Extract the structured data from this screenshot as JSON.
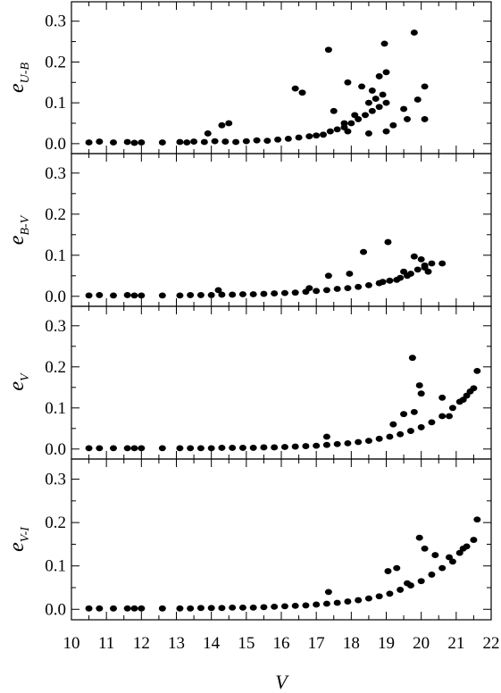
{
  "chart_data": [
    {
      "type": "scatter",
      "ylabel": {
        "main": "e",
        "sub": "U-B"
      },
      "xlabel": "",
      "xlim": [
        10,
        22
      ],
      "ylim": [
        -0.02,
        0.33
      ],
      "yticks": [
        "0.0",
        "0.1",
        "0.2",
        "0.3"
      ],
      "xticks": [],
      "points": [
        [
          10.5,
          0.003
        ],
        [
          10.8,
          0.005
        ],
        [
          11.2,
          0.003
        ],
        [
          11.6,
          0.004
        ],
        [
          11.8,
          0.002
        ],
        [
          12.0,
          0.003
        ],
        [
          12.6,
          0.003
        ],
        [
          13.1,
          0.004
        ],
        [
          13.3,
          0.003
        ],
        [
          13.5,
          0.005
        ],
        [
          13.8,
          0.004
        ],
        [
          14.1,
          0.006
        ],
        [
          14.4,
          0.005
        ],
        [
          14.7,
          0.004
        ],
        [
          15.0,
          0.006
        ],
        [
          15.3,
          0.008
        ],
        [
          15.6,
          0.007
        ],
        [
          15.9,
          0.01
        ],
        [
          16.2,
          0.012
        ],
        [
          16.5,
          0.015
        ],
        [
          16.8,
          0.018
        ],
        [
          17.0,
          0.02
        ],
        [
          17.2,
          0.022
        ],
        [
          17.4,
          0.03
        ],
        [
          17.6,
          0.035
        ],
        [
          17.8,
          0.04
        ],
        [
          18.0,
          0.05
        ],
        [
          18.2,
          0.06
        ],
        [
          18.4,
          0.07
        ],
        [
          18.6,
          0.08
        ],
        [
          18.8,
          0.09
        ],
        [
          19.0,
          0.1
        ],
        [
          17.35,
          0.23
        ],
        [
          16.4,
          0.135
        ],
        [
          16.6,
          0.125
        ],
        [
          17.9,
          0.15
        ],
        [
          18.3,
          0.14
        ],
        [
          18.6,
          0.13
        ],
        [
          18.8,
          0.165
        ],
        [
          19.0,
          0.175
        ],
        [
          18.95,
          0.245
        ],
        [
          19.8,
          0.272
        ],
        [
          20.1,
          0.14
        ],
        [
          19.9,
          0.108
        ],
        [
          20.1,
          0.06
        ],
        [
          17.5,
          0.08
        ],
        [
          17.8,
          0.05
        ],
        [
          18.1,
          0.07
        ],
        [
          18.5,
          0.1
        ],
        [
          19.2,
          0.045
        ],
        [
          19.6,
          0.06
        ],
        [
          19.5,
          0.085
        ],
        [
          14.3,
          0.045
        ],
        [
          14.5,
          0.05
        ],
        [
          13.9,
          0.025
        ],
        [
          18.9,
          0.12
        ],
        [
          18.7,
          0.11
        ],
        [
          17.9,
          0.03
        ],
        [
          18.5,
          0.025
        ],
        [
          19.0,
          0.03
        ]
      ]
    },
    {
      "type": "scatter",
      "ylabel": {
        "main": "e",
        "sub": "B-V"
      },
      "xlabel": "",
      "xlim": [
        10,
        22
      ],
      "ylim": [
        -0.02,
        0.33
      ],
      "yticks": [
        "0.0",
        "0.1",
        "0.2",
        "0.3"
      ],
      "xticks": [],
      "points": [
        [
          10.5,
          0.002
        ],
        [
          10.8,
          0.003
        ],
        [
          11.2,
          0.002
        ],
        [
          11.6,
          0.003
        ],
        [
          11.8,
          0.002
        ],
        [
          12.0,
          0.002
        ],
        [
          12.6,
          0.002
        ],
        [
          13.1,
          0.002
        ],
        [
          13.4,
          0.003
        ],
        [
          13.7,
          0.003
        ],
        [
          14.0,
          0.003
        ],
        [
          14.3,
          0.004
        ],
        [
          14.6,
          0.004
        ],
        [
          14.9,
          0.005
        ],
        [
          15.2,
          0.005
        ],
        [
          15.5,
          0.006
        ],
        [
          15.8,
          0.007
        ],
        [
          16.1,
          0.008
        ],
        [
          16.4,
          0.009
        ],
        [
          16.7,
          0.011
        ],
        [
          17.0,
          0.013
        ],
        [
          17.3,
          0.015
        ],
        [
          17.6,
          0.018
        ],
        [
          17.9,
          0.02
        ],
        [
          18.2,
          0.023
        ],
        [
          18.5,
          0.027
        ],
        [
          18.8,
          0.032
        ],
        [
          19.1,
          0.038
        ],
        [
          19.4,
          0.045
        ],
        [
          19.7,
          0.055
        ],
        [
          19.9,
          0.065
        ],
        [
          20.1,
          0.075
        ],
        [
          20.3,
          0.08
        ],
        [
          20.6,
          0.08
        ],
        [
          18.35,
          0.108
        ],
        [
          19.05,
          0.132
        ],
        [
          17.35,
          0.05
        ],
        [
          17.95,
          0.055
        ],
        [
          19.8,
          0.097
        ],
        [
          20.0,
          0.09
        ],
        [
          20.1,
          0.07
        ],
        [
          19.6,
          0.05
        ],
        [
          19.3,
          0.04
        ],
        [
          14.2,
          0.015
        ],
        [
          16.8,
          0.02
        ],
        [
          20.2,
          0.06
        ],
        [
          19.5,
          0.06
        ],
        [
          18.9,
          0.035
        ]
      ]
    },
    {
      "type": "scatter",
      "ylabel": {
        "main": "e",
        "sub": "V"
      },
      "xlabel": "",
      "xlim": [
        10,
        22
      ],
      "ylim": [
        -0.02,
        0.33
      ],
      "yticks": [
        "0.0",
        "0.1",
        "0.2",
        "0.3"
      ],
      "xticks": [],
      "points": [
        [
          10.5,
          0.002
        ],
        [
          10.8,
          0.002
        ],
        [
          11.2,
          0.002
        ],
        [
          11.6,
          0.002
        ],
        [
          11.8,
          0.002
        ],
        [
          12.0,
          0.002
        ],
        [
          12.6,
          0.002
        ],
        [
          13.1,
          0.002
        ],
        [
          13.4,
          0.002
        ],
        [
          13.7,
          0.002
        ],
        [
          14.0,
          0.002
        ],
        [
          14.3,
          0.003
        ],
        [
          14.6,
          0.003
        ],
        [
          14.9,
          0.003
        ],
        [
          15.2,
          0.003
        ],
        [
          15.5,
          0.004
        ],
        [
          15.8,
          0.004
        ],
        [
          16.1,
          0.005
        ],
        [
          16.4,
          0.006
        ],
        [
          16.7,
          0.007
        ],
        [
          17.0,
          0.008
        ],
        [
          17.3,
          0.01
        ],
        [
          17.6,
          0.012
        ],
        [
          17.9,
          0.014
        ],
        [
          18.2,
          0.017
        ],
        [
          18.5,
          0.02
        ],
        [
          18.8,
          0.025
        ],
        [
          19.1,
          0.03
        ],
        [
          19.4,
          0.036
        ],
        [
          19.7,
          0.044
        ],
        [
          20.0,
          0.053
        ],
        [
          20.3,
          0.065
        ],
        [
          20.6,
          0.08
        ],
        [
          20.9,
          0.1
        ],
        [
          21.1,
          0.115
        ],
        [
          21.3,
          0.13
        ],
        [
          21.4,
          0.14
        ],
        [
          21.6,
          0.19
        ],
        [
          19.75,
          0.222
        ],
        [
          19.95,
          0.155
        ],
        [
          20.0,
          0.135
        ],
        [
          19.5,
          0.085
        ],
        [
          19.8,
          0.09
        ],
        [
          20.6,
          0.125
        ],
        [
          19.2,
          0.06
        ],
        [
          17.3,
          0.03
        ],
        [
          20.8,
          0.08
        ],
        [
          21.2,
          0.12
        ],
        [
          21.5,
          0.148
        ]
      ]
    },
    {
      "type": "scatter",
      "ylabel": {
        "main": "e",
        "sub": "V-I"
      },
      "xlabel": "V",
      "xlim": [
        10,
        22
      ],
      "ylim": [
        -0.02,
        0.33
      ],
      "yticks": [
        "0.0",
        "0.1",
        "0.2",
        "0.3"
      ],
      "xticks": [
        "10",
        "11",
        "12",
        "13",
        "14",
        "15",
        "16",
        "17",
        "18",
        "19",
        "20",
        "21",
        "22"
      ],
      "points": [
        [
          10.5,
          0.002
        ],
        [
          10.8,
          0.002
        ],
        [
          11.2,
          0.002
        ],
        [
          11.6,
          0.002
        ],
        [
          11.8,
          0.002
        ],
        [
          12.0,
          0.002
        ],
        [
          12.6,
          0.002
        ],
        [
          13.1,
          0.002
        ],
        [
          13.4,
          0.002
        ],
        [
          13.7,
          0.003
        ],
        [
          14.0,
          0.003
        ],
        [
          14.3,
          0.003
        ],
        [
          14.6,
          0.004
        ],
        [
          14.9,
          0.004
        ],
        [
          15.2,
          0.004
        ],
        [
          15.5,
          0.005
        ],
        [
          15.8,
          0.006
        ],
        [
          16.1,
          0.007
        ],
        [
          16.4,
          0.008
        ],
        [
          16.7,
          0.009
        ],
        [
          17.0,
          0.011
        ],
        [
          17.3,
          0.013
        ],
        [
          17.6,
          0.015
        ],
        [
          17.9,
          0.018
        ],
        [
          18.2,
          0.021
        ],
        [
          18.5,
          0.025
        ],
        [
          18.8,
          0.03
        ],
        [
          19.1,
          0.036
        ],
        [
          19.4,
          0.045
        ],
        [
          19.7,
          0.055
        ],
        [
          20.0,
          0.065
        ],
        [
          20.3,
          0.08
        ],
        [
          20.6,
          0.095
        ],
        [
          20.9,
          0.11
        ],
        [
          21.1,
          0.13
        ],
        [
          21.3,
          0.145
        ],
        [
          21.5,
          0.16
        ],
        [
          21.6,
          0.207
        ],
        [
          19.95,
          0.165
        ],
        [
          20.1,
          0.14
        ],
        [
          19.05,
          0.088
        ],
        [
          19.3,
          0.095
        ],
        [
          20.4,
          0.125
        ],
        [
          17.35,
          0.04
        ],
        [
          19.6,
          0.06
        ],
        [
          20.8,
          0.12
        ],
        [
          21.2,
          0.14
        ]
      ]
    }
  ]
}
